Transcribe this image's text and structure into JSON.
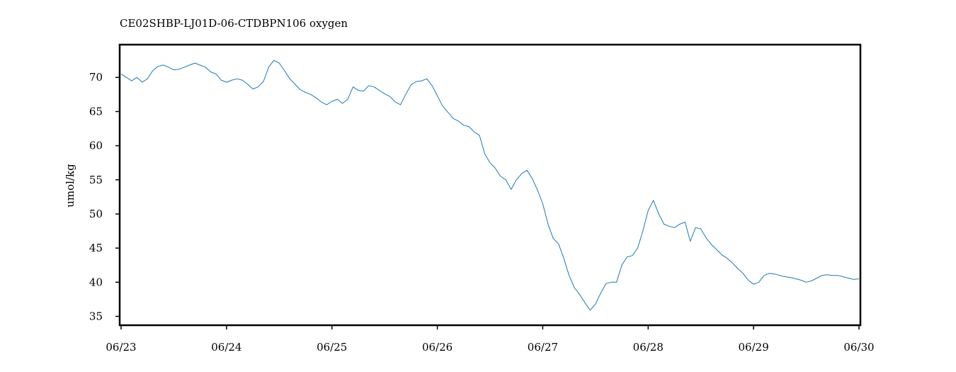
{
  "chart_data": {
    "type": "line",
    "title": "CE02SHBP-LJ01D-06-CTDBPN106 oxygen",
    "xlabel": "",
    "ylabel": "umol/kg",
    "x_tick_labels": [
      "06/23",
      "06/24",
      "06/25",
      "06/26",
      "06/27",
      "06/28",
      "06/29",
      "06/30"
    ],
    "y_tick_labels": [
      "35",
      "40",
      "45",
      "50",
      "55",
      "60",
      "65",
      "70"
    ],
    "y_ticks": [
      35,
      40,
      45,
      50,
      55,
      60,
      65,
      70
    ],
    "xlim": [
      0,
      7
    ],
    "ylim": [
      33.7,
      74.8
    ],
    "grid": false,
    "legend": "none",
    "series": [
      {
        "color": "#1f77b4",
        "x": [
          0.0,
          0.05,
          0.1,
          0.15,
          0.2,
          0.25,
          0.3,
          0.35,
          0.4,
          0.45,
          0.5,
          0.55,
          0.6,
          0.65,
          0.7,
          0.75,
          0.8,
          0.85,
          0.9,
          0.95,
          1.0,
          1.05,
          1.1,
          1.15,
          1.2,
          1.25,
          1.3,
          1.35,
          1.4,
          1.45,
          1.5,
          1.55,
          1.6,
          1.65,
          1.7,
          1.75,
          1.8,
          1.85,
          1.9,
          1.95,
          2.0,
          2.05,
          2.1,
          2.15,
          2.2,
          2.25,
          2.3,
          2.35,
          2.4,
          2.45,
          2.5,
          2.55,
          2.6,
          2.65,
          2.7,
          2.75,
          2.8,
          2.85,
          2.9,
          2.95,
          3.0,
          3.05,
          3.1,
          3.15,
          3.2,
          3.25,
          3.3,
          3.35,
          3.4,
          3.45,
          3.5,
          3.55,
          3.6,
          3.65,
          3.7,
          3.75,
          3.8,
          3.85,
          3.9,
          3.95,
          4.0,
          4.05,
          4.1,
          4.15,
          4.2,
          4.25,
          4.3,
          4.35,
          4.4,
          4.45,
          4.5,
          4.55,
          4.6,
          4.65,
          4.7,
          4.75,
          4.8,
          4.85,
          4.9,
          4.95,
          5.0,
          5.05,
          5.1,
          5.15,
          5.2,
          5.25,
          5.3,
          5.35,
          5.4,
          5.45,
          5.5,
          5.55,
          5.6,
          5.65,
          5.7,
          5.75,
          5.8,
          5.85,
          5.9,
          5.95,
          6.0,
          6.05,
          6.1,
          6.15,
          6.2,
          6.25,
          6.3,
          6.35,
          6.4,
          6.45,
          6.5,
          6.55,
          6.6,
          6.65,
          6.7,
          6.75,
          6.8,
          6.85,
          6.9,
          6.95,
          7.0
        ],
        "y": [
          70.5,
          70.0,
          69.5,
          70.0,
          69.3,
          69.8,
          71.0,
          71.6,
          71.8,
          71.5,
          71.1,
          71.2,
          71.5,
          71.8,
          72.1,
          71.8,
          71.5,
          70.8,
          70.5,
          69.6,
          69.3,
          69.6,
          69.8,
          69.6,
          69.0,
          68.3,
          68.6,
          69.4,
          71.5,
          72.5,
          72.1,
          71.0,
          69.8,
          69.0,
          68.2,
          67.8,
          67.5,
          67.0,
          66.4,
          66.0,
          66.5,
          66.8,
          66.2,
          66.8,
          68.6,
          68.1,
          68.0,
          68.8,
          68.6,
          68.1,
          67.6,
          67.2,
          66.4,
          66.0,
          67.5,
          68.9,
          69.4,
          69.5,
          69.8,
          68.8,
          67.3,
          65.8,
          64.9,
          64.0,
          63.6,
          63.0,
          62.8,
          62.0,
          61.5,
          58.8,
          57.5,
          56.7,
          55.5,
          55.0,
          53.6,
          55.0,
          55.9,
          56.4,
          55.2,
          53.5,
          51.5,
          48.5,
          46.4,
          45.6,
          43.5,
          41.0,
          39.2,
          38.2,
          37.0,
          35.9,
          36.8,
          38.4,
          39.8,
          40.0,
          40.0,
          42.5,
          43.7,
          43.9,
          45.0,
          47.5,
          50.5,
          52.0,
          50.0,
          48.5,
          48.2,
          48.0,
          48.5,
          48.8,
          46.0,
          48.0,
          47.8,
          46.5,
          45.5,
          44.8,
          44.0,
          43.5,
          42.8,
          42.0,
          41.3,
          40.3,
          39.7,
          40.0,
          41.0,
          41.3,
          41.2,
          41.0,
          40.8,
          40.7,
          40.5,
          40.3,
          40.0,
          40.2,
          40.6,
          41.0,
          41.1,
          41.0,
          41.0,
          40.8,
          40.6,
          40.4,
          40.5
        ]
      }
    ]
  }
}
